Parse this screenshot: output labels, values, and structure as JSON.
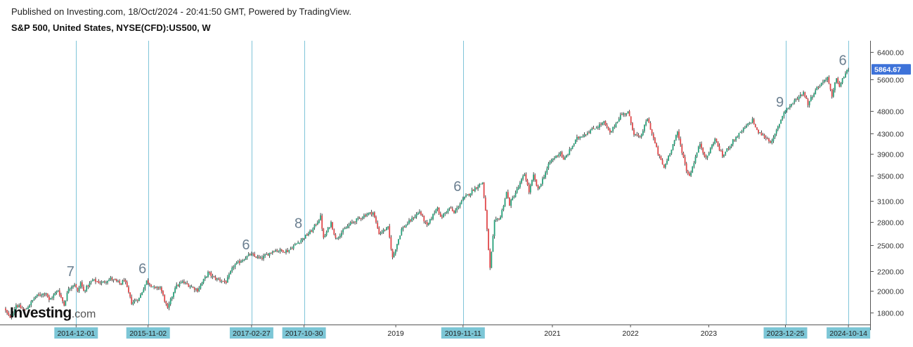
{
  "header": {
    "published": "Published on Investing.com, 18/Oct/2024 - 20:41:50 GMT, Powered by TradingView.",
    "instrument": "S&P 500, United States, NYSE(CFD):US500, W"
  },
  "logo": {
    "brand": "Investing",
    "suffix": ".com"
  },
  "colors": {
    "up": "#26a17a",
    "down": "#e0484a",
    "vline": "#7fc4d8",
    "tag_bg": "#7cc6d6",
    "price_tag_bg": "#3d72d9",
    "count_label": "#6b7f90",
    "axis_text": "#333333"
  },
  "chart_data": {
    "type": "candlestick",
    "title": "S&P 500, United States, NYSE(CFD):US500, W",
    "xlabel": "",
    "ylabel": "",
    "y_scale": "log",
    "ylim": [
      1700,
      6750
    ],
    "y_ticks": [
      "6400.00",
      "5600.00",
      "4800.00",
      "4300.00",
      "3900.00",
      "3500.00",
      "3100.00",
      "2800.00",
      "2500.00",
      "2200.00",
      "2000.00",
      "1800.00"
    ],
    "last_price": {
      "value": 5864.67,
      "label": "5864.67"
    },
    "x_range": [
      "2014-01-06",
      "2025-01-20"
    ],
    "x_labels": [
      {
        "date": "2014-12-01",
        "text": "2014-12-01",
        "highlight": true
      },
      {
        "date": "2015-11-02",
        "text": "2015-11-02",
        "highlight": true
      },
      {
        "date": "2017-02-27",
        "text": "2017-02-27",
        "highlight": true
      },
      {
        "date": "2017-10-30",
        "text": "2017-10-30",
        "highlight": true
      },
      {
        "date": "2019-01-01",
        "text": "2019",
        "highlight": false
      },
      {
        "date": "2019-11-11",
        "text": "2019-11-11",
        "highlight": true
      },
      {
        "date": "2021-01-01",
        "text": "2021",
        "highlight": false
      },
      {
        "date": "2022-01-01",
        "text": "2022",
        "highlight": false
      },
      {
        "date": "2023-01-01",
        "text": "2023",
        "highlight": false
      },
      {
        "date": "2023-12-25",
        "text": "2023-12-25",
        "highlight": true
      },
      {
        "date": "2024-10-14",
        "text": "2024-10-14",
        "highlight": true
      }
    ],
    "vertical_markers": [
      "2014-12-01",
      "2015-11-02",
      "2017-02-27",
      "2017-10-30",
      "2019-11-11",
      "2023-12-25",
      "2024-10-14"
    ],
    "count_labels": [
      {
        "date": "2014-12-01",
        "price": 2150,
        "text": "7"
      },
      {
        "date": "2015-11-02",
        "price": 2180,
        "text": "6"
      },
      {
        "date": "2017-02-27",
        "price": 2450,
        "text": "6"
      },
      {
        "date": "2017-10-30",
        "price": 2720,
        "text": "8"
      },
      {
        "date": "2019-11-11",
        "price": 3250,
        "text": "6"
      },
      {
        "date": "2023-12-25",
        "price": 4900,
        "text": "9"
      },
      {
        "date": "2024-10-14",
        "price": 6000,
        "text": "6"
      }
    ],
    "price_path": [
      [
        "2014-01-06",
        1840
      ],
      [
        "2014-02-03",
        1750
      ],
      [
        "2014-03-03",
        1870
      ],
      [
        "2014-04-14",
        1820
      ],
      [
        "2014-06-02",
        1950
      ],
      [
        "2014-07-21",
        1985
      ],
      [
        "2014-08-04",
        1910
      ],
      [
        "2014-09-15",
        2010
      ],
      [
        "2014-10-13",
        1870
      ],
      [
        "2014-11-03",
        2030
      ],
      [
        "2014-12-01",
        2070
      ],
      [
        "2014-12-15",
        1990
      ],
      [
        "2014-12-29",
        2085
      ],
      [
        "2015-01-12",
        2000
      ],
      [
        "2015-02-23",
        2110
      ],
      [
        "2015-04-06",
        2080
      ],
      [
        "2015-05-18",
        2125
      ],
      [
        "2015-07-06",
        2070
      ],
      [
        "2015-07-20",
        2120
      ],
      [
        "2015-08-24",
        1890
      ],
      [
        "2015-09-28",
        1930
      ],
      [
        "2015-11-02",
        2100
      ],
      [
        "2015-12-14",
        2020
      ],
      [
        "2016-01-04",
        2040
      ],
      [
        "2016-02-08",
        1830
      ],
      [
        "2016-03-14",
        2040
      ],
      [
        "2016-04-18",
        2090
      ],
      [
        "2016-06-27",
        2010
      ],
      [
        "2016-08-15",
        2185
      ],
      [
        "2016-09-12",
        2130
      ],
      [
        "2016-11-07",
        2090
      ],
      [
        "2016-12-12",
        2260
      ],
      [
        "2017-02-27",
        2390
      ],
      [
        "2017-04-17",
        2340
      ],
      [
        "2017-06-19",
        2440
      ],
      [
        "2017-08-21",
        2430
      ],
      [
        "2017-10-30",
        2580
      ],
      [
        "2017-12-11",
        2680
      ],
      [
        "2018-01-22",
        2870
      ],
      [
        "2018-02-05",
        2580
      ],
      [
        "2018-03-12",
        2790
      ],
      [
        "2018-04-02",
        2580
      ],
      [
        "2018-06-11",
        2780
      ],
      [
        "2018-08-27",
        2910
      ],
      [
        "2018-09-24",
        2930
      ],
      [
        "2018-10-22",
        2650
      ],
      [
        "2018-12-03",
        2720
      ],
      [
        "2018-12-24",
        2350
      ],
      [
        "2019-02-04",
        2700
      ],
      [
        "2019-04-29",
        2945
      ],
      [
        "2019-06-03",
        2740
      ],
      [
        "2019-07-22",
        3020
      ],
      [
        "2019-08-05",
        2850
      ],
      [
        "2019-09-16",
        3000
      ],
      [
        "2019-10-07",
        2920
      ],
      [
        "2019-11-11",
        3100
      ],
      [
        "2020-01-13",
        3300
      ],
      [
        "2020-02-17",
        3390
      ],
      [
        "2020-03-02",
        2950
      ],
      [
        "2020-03-23",
        2230
      ],
      [
        "2020-04-13",
        2800
      ],
      [
        "2020-05-11",
        2870
      ],
      [
        "2020-06-08",
        3230
      ],
      [
        "2020-06-22",
        3050
      ],
      [
        "2020-07-27",
        3270
      ],
      [
        "2020-09-01",
        3540
      ],
      [
        "2020-09-21",
        3240
      ],
      [
        "2020-10-12",
        3500
      ],
      [
        "2020-11-02",
        3270
      ],
      [
        "2020-12-28",
        3750
      ],
      [
        "2021-02-15",
        3930
      ],
      [
        "2021-03-01",
        3770
      ],
      [
        "2021-05-03",
        4200
      ],
      [
        "2021-07-19",
        4400
      ],
      [
        "2021-09-06",
        4540
      ],
      [
        "2021-10-04",
        4300
      ],
      [
        "2021-11-22",
        4700
      ],
      [
        "2021-12-27",
        4770
      ],
      [
        "2022-01-24",
        4300
      ],
      [
        "2022-02-21",
        4200
      ],
      [
        "2022-03-28",
        4630
      ],
      [
        "2022-05-16",
        3900
      ],
      [
        "2022-06-13",
        3640
      ],
      [
        "2022-08-15",
        4320
      ],
      [
        "2022-09-26",
        3600
      ],
      [
        "2022-10-10",
        3500
      ],
      [
        "2022-11-28",
        4100
      ],
      [
        "2022-12-26",
        3800
      ],
      [
        "2023-02-06",
        4190
      ],
      [
        "2023-03-13",
        3850
      ],
      [
        "2023-05-01",
        4150
      ],
      [
        "2023-07-31",
        4600
      ],
      [
        "2023-08-21",
        4350
      ],
      [
        "2023-10-30",
        4120
      ],
      [
        "2023-12-25",
        4780
      ],
      [
        "2024-03-25",
        5260
      ],
      [
        "2024-04-15",
        4970
      ],
      [
        "2024-05-20",
        5320
      ],
      [
        "2024-07-15",
        5660
      ],
      [
        "2024-08-05",
        5120
      ],
      [
        "2024-08-26",
        5650
      ],
      [
        "2024-09-09",
        5400
      ],
      [
        "2024-10-14",
        5864.67
      ]
    ]
  }
}
